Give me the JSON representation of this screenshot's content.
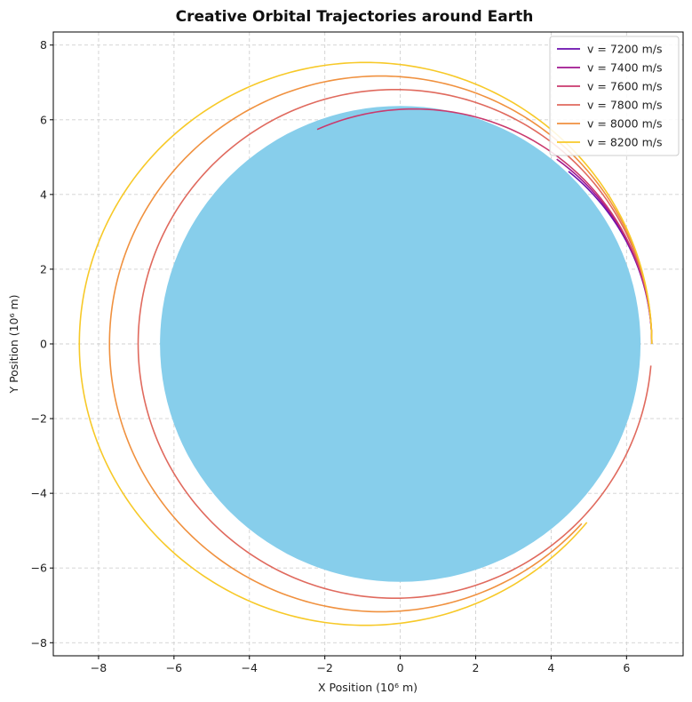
{
  "chart_data": {
    "type": "line",
    "title": "Creative Orbital Trajectories around Earth",
    "xlabel": "X Position (10⁶ m)",
    "ylabel": "Y Position (10⁶ m)",
    "xlim": [
      -9.2,
      7.5
    ],
    "ylim": [
      -8.35,
      8.35
    ],
    "xticks": [
      -8,
      -6,
      -4,
      -2,
      0,
      2,
      4,
      6
    ],
    "yticks": [
      -8,
      -6,
      -4,
      -2,
      0,
      2,
      4,
      6,
      8
    ],
    "xtick_labels": [
      "−8",
      "−6",
      "−4",
      "−2",
      "0",
      "2",
      "4",
      "6"
    ],
    "ytick_labels": [
      "−8",
      "−6",
      "−4",
      "−2",
      "0",
      "2",
      "4",
      "6",
      "8"
    ],
    "grid": true,
    "legend_position": "top-right",
    "earth": {
      "center": [
        0,
        0
      ],
      "radius": 6.371,
      "color": "#87ceeb"
    },
    "series": [
      {
        "name": "v = 7200 m/s",
        "color": "#6a0dad",
        "periapsis": 6.67,
        "apoapsis": 5.32,
        "end_angle_deg": 46
      },
      {
        "name": "v = 7400 m/s",
        "color": "#a0168f",
        "periapsis": 6.67,
        "apoapsis": 5.62,
        "end_angle_deg": 50
      },
      {
        "name": "v = 7600 m/s",
        "color": "#c93a6e",
        "periapsis": 6.67,
        "apoapsis": 5.93,
        "end_angle_deg": 111
      },
      {
        "name": "v = 7800 m/s",
        "color": "#e06a5e",
        "periapsis": 6.67,
        "apoapsis": 6.95,
        "end_angle_deg": 355
      },
      {
        "name": "v = 8000 m/s",
        "color": "#f0913f",
        "periapsis": 6.67,
        "apoapsis": 7.71,
        "end_angle_deg": 315
      },
      {
        "name": "v = 8200 m/s",
        "color": "#f7c928",
        "periapsis": 6.67,
        "apoapsis": 8.51,
        "end_angle_deg": 316
      }
    ]
  }
}
